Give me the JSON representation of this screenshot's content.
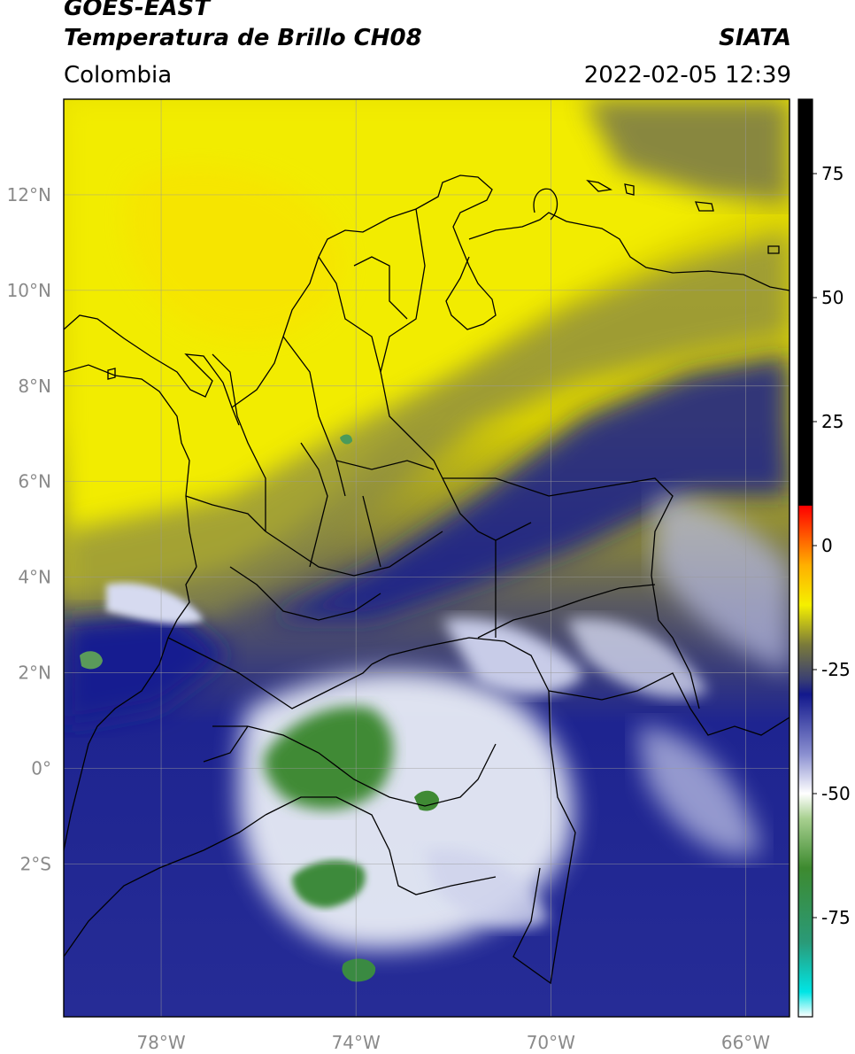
{
  "header": {
    "satellite": "GOES-EAST",
    "product": "Temperatura de Brillo CH08",
    "region": "Colombia",
    "agency": "SIATA",
    "datetime": "2022-02-05 12:39"
  },
  "map": {
    "lon_range": [
      -80,
      -65.1
    ],
    "lat_range": [
      -5.2,
      14
    ],
    "lat_ticks": [
      {
        "value": 12,
        "label": "12°N"
      },
      {
        "value": 10,
        "label": "10°N"
      },
      {
        "value": 8,
        "label": "8°N"
      },
      {
        "value": 6,
        "label": "6°N"
      },
      {
        "value": 4,
        "label": "4°N"
      },
      {
        "value": 2,
        "label": "2°N"
      },
      {
        "value": 0,
        "label": "0°"
      },
      {
        "value": -2,
        "label": "2°S"
      }
    ],
    "lon_ticks": [
      {
        "value": -78,
        "label": "78°W"
      },
      {
        "value": -74,
        "label": "74°W"
      },
      {
        "value": -70,
        "label": "70°W"
      },
      {
        "value": -66,
        "label": "66°W"
      }
    ]
  },
  "colorbar": {
    "range": [
      -95,
      90
    ],
    "ticks": [
      {
        "value": 75,
        "label": "75"
      },
      {
        "value": 50,
        "label": "50"
      },
      {
        "value": 25,
        "label": "25"
      },
      {
        "value": 0,
        "label": "0"
      },
      {
        "value": -25,
        "label": "-25"
      },
      {
        "value": -50,
        "label": "-50"
      },
      {
        "value": -75,
        "label": "-75"
      }
    ],
    "stops": [
      {
        "value": -95,
        "color": "#ffffff"
      },
      {
        "value": -90,
        "color": "#00e5e5"
      },
      {
        "value": -80,
        "color": "#2a9a78"
      },
      {
        "value": -65,
        "color": "#3d8a2f"
      },
      {
        "value": -55,
        "color": "#a8d090"
      },
      {
        "value": -50,
        "color": "#ffffff"
      },
      {
        "value": -42,
        "color": "#8a8fd0"
      },
      {
        "value": -30,
        "color": "#12188c"
      },
      {
        "value": -27,
        "color": "#3a3f72"
      },
      {
        "value": -20,
        "color": "#7a7a3a"
      },
      {
        "value": -12,
        "color": "#f5f000"
      },
      {
        "value": -4,
        "color": "#ffb000"
      },
      {
        "value": 8,
        "color": "#ff0000"
      },
      {
        "value": 8.1,
        "color": "#000000"
      },
      {
        "value": 90,
        "color": "#000000"
      }
    ]
  }
}
